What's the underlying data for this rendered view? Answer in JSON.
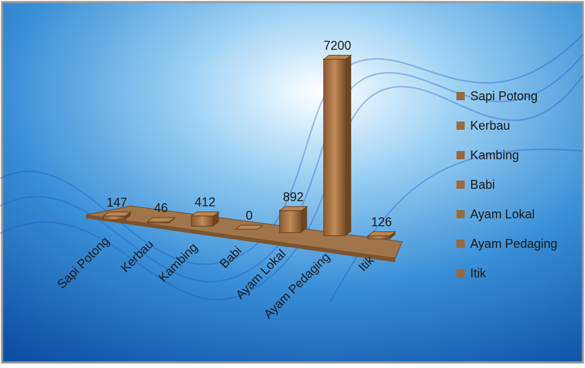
{
  "chart_data": {
    "type": "bar3d",
    "categories": [
      "Sapi Potong",
      "Kerbau",
      "Kambing",
      "Babi",
      "Ayam Lokal",
      "Ayam Pedaging",
      "Itik"
    ],
    "values": [
      147,
      46,
      412,
      0,
      892,
      7200,
      126
    ],
    "color": "#9a6a3c",
    "legend": "right"
  }
}
